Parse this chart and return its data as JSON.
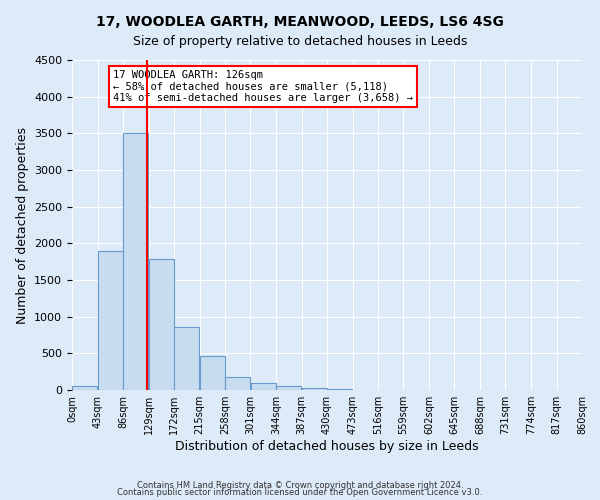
{
  "title": "17, WOODLEA GARTH, MEANWOOD, LEEDS, LS6 4SG",
  "subtitle": "Size of property relative to detached houses in Leeds",
  "xlabel": "Distribution of detached houses by size in Leeds",
  "ylabel": "Number of detached properties",
  "bar_color": "#c8dcf0",
  "bar_edge_color": "#6699cc",
  "bin_edges": [
    0,
    43,
    86,
    129,
    172,
    215,
    258,
    301,
    344,
    387,
    430,
    473,
    516,
    559,
    602,
    645,
    688,
    731,
    774,
    817,
    860
  ],
  "bin_labels": [
    "0sqm",
    "43sqm",
    "86sqm",
    "129sqm",
    "172sqm",
    "215sqm",
    "258sqm",
    "301sqm",
    "344sqm",
    "387sqm",
    "430sqm",
    "473sqm",
    "516sqm",
    "559sqm",
    "602sqm",
    "645sqm",
    "688sqm",
    "731sqm",
    "774sqm",
    "817sqm",
    "860sqm"
  ],
  "counts": [
    50,
    1900,
    3500,
    1780,
    860,
    460,
    175,
    100,
    55,
    30,
    10,
    0,
    0,
    0,
    0,
    0,
    0,
    0,
    0,
    0
  ],
  "ylim": [
    0,
    4500
  ],
  "yticks": [
    0,
    500,
    1000,
    1500,
    2000,
    2500,
    3000,
    3500,
    4000,
    4500
  ],
  "vline_x": 126,
  "annotation_title": "17 WOODLEA GARTH: 126sqm",
  "annotation_line1": "← 58% of detached houses are smaller (5,118)",
  "annotation_line2": "41% of semi-detached houses are larger (3,658) →",
  "footer1": "Contains HM Land Registry data © Crown copyright and database right 2024.",
  "footer2": "Contains public sector information licensed under the Open Government Licence v3.0.",
  "background_color": "#ddeaf7",
  "grid_color": "#ffffff"
}
